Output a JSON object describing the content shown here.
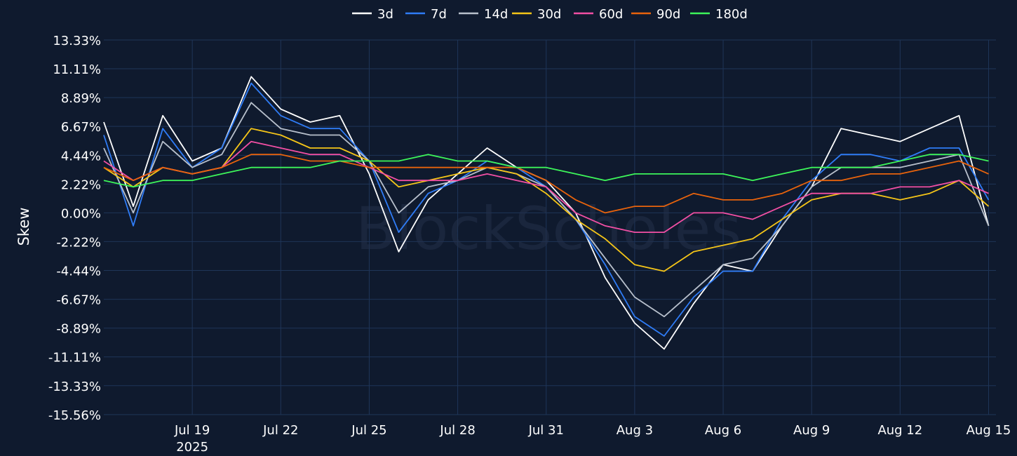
{
  "colors": {
    "background": "#0f1a2e",
    "grid": "#1f3558",
    "text": "#ffffff"
  },
  "watermark": "BlockScholes",
  "chart_data": {
    "type": "line",
    "title": "",
    "xlabel": "",
    "ylabel": "Skew",
    "x_range": [
      "2025-07-16",
      "2025-08-15T06:00"
    ],
    "ylim": [
      -15.56,
      13.33
    ],
    "y_ticks": [
      {
        "value": 13.33,
        "label": "13.33%"
      },
      {
        "value": 11.11,
        "label": "11.11%"
      },
      {
        "value": 8.89,
        "label": "8.89%"
      },
      {
        "value": 6.67,
        "label": "6.67%"
      },
      {
        "value": 4.44,
        "label": "4.44%"
      },
      {
        "value": 2.22,
        "label": "2.22%"
      },
      {
        "value": 0.0,
        "label": "0.00%"
      },
      {
        "value": -2.22,
        "label": "-2.22%"
      },
      {
        "value": -4.44,
        "label": "-4.44%"
      },
      {
        "value": -6.67,
        "label": "-6.67%"
      },
      {
        "value": -8.89,
        "label": "-8.89%"
      },
      {
        "value": -11.11,
        "label": "-11.11%"
      },
      {
        "value": -13.33,
        "label": "-13.33%"
      },
      {
        "value": -15.56,
        "label": "-15.56%"
      }
    ],
    "x_ticks": [
      {
        "date": "2025-07-19",
        "label": "Jul 19",
        "sublabel": "2025"
      },
      {
        "date": "2025-07-22",
        "label": "Jul 22"
      },
      {
        "date": "2025-07-25",
        "label": "Jul 25"
      },
      {
        "date": "2025-07-28",
        "label": "Jul 28"
      },
      {
        "date": "2025-07-31",
        "label": "Jul 31"
      },
      {
        "date": "2025-08-03",
        "label": "Aug 3"
      },
      {
        "date": "2025-08-06",
        "label": "Aug 6"
      },
      {
        "date": "2025-08-09",
        "label": "Aug 9"
      },
      {
        "date": "2025-08-12",
        "label": "Aug 12"
      },
      {
        "date": "2025-08-15",
        "label": "Aug 15"
      }
    ],
    "grid": true,
    "legend_position": "top-center",
    "x": [
      "2025-07-16",
      "2025-07-17",
      "2025-07-18",
      "2025-07-19",
      "2025-07-20",
      "2025-07-21",
      "2025-07-22",
      "2025-07-23",
      "2025-07-24",
      "2025-07-25",
      "2025-07-26",
      "2025-07-27",
      "2025-07-28",
      "2025-07-29",
      "2025-07-30",
      "2025-07-31",
      "2025-08-01",
      "2025-08-02",
      "2025-08-03",
      "2025-08-04",
      "2025-08-05",
      "2025-08-06",
      "2025-08-07",
      "2025-08-08",
      "2025-08-09",
      "2025-08-10",
      "2025-08-11",
      "2025-08-12",
      "2025-08-13",
      "2025-08-14",
      "2025-08-15"
    ],
    "series": [
      {
        "name": "3d",
        "color": "#ffffff",
        "values": [
          7.0,
          0.5,
          7.5,
          4.0,
          5.0,
          10.5,
          8.0,
          7.0,
          7.5,
          3.0,
          -3.0,
          1.0,
          3.0,
          5.0,
          3.5,
          2.5,
          0.0,
          -5.0,
          -8.5,
          -10.5,
          -7.0,
          -4.0,
          -4.5,
          -1.0,
          2.0,
          6.5,
          6.0,
          5.5,
          6.5,
          7.5,
          -1.0
        ]
      },
      {
        "name": "7d",
        "color": "#2f7cf6",
        "values": [
          6.0,
          -1.0,
          6.5,
          3.5,
          5.0,
          10.0,
          7.5,
          6.5,
          6.5,
          4.0,
          -1.5,
          1.5,
          2.5,
          4.0,
          3.5,
          2.0,
          -0.5,
          -4.0,
          -8.0,
          -9.5,
          -6.5,
          -4.5,
          -4.5,
          -0.5,
          2.5,
          4.5,
          4.5,
          4.0,
          5.0,
          5.0,
          1.0
        ]
      },
      {
        "name": "14d",
        "color": "#b8c0cc",
        "values": [
          5.0,
          0.0,
          5.5,
          3.5,
          4.5,
          8.5,
          6.5,
          6.0,
          6.0,
          4.0,
          0.0,
          2.0,
          2.5,
          3.5,
          3.0,
          2.0,
          -0.5,
          -3.5,
          -6.5,
          -8.0,
          -6.0,
          -4.0,
          -3.5,
          -1.0,
          2.0,
          3.5,
          3.5,
          3.5,
          4.0,
          4.5,
          -1.0
        ]
      },
      {
        "name": "30d",
        "color": "#f5c518",
        "values": [
          3.5,
          2.0,
          3.5,
          3.0,
          3.5,
          6.5,
          6.0,
          5.0,
          5.0,
          4.0,
          2.0,
          2.5,
          3.0,
          3.5,
          3.0,
          1.5,
          -0.5,
          -2.0,
          -4.0,
          -4.5,
          -3.0,
          -2.5,
          -2.0,
          -0.5,
          1.0,
          1.5,
          1.5,
          1.0,
          1.5,
          2.5,
          0.5
        ]
      },
      {
        "name": "60d",
        "color": "#f24fa4",
        "values": [
          4.0,
          2.5,
          3.5,
          3.0,
          3.5,
          5.5,
          5.0,
          4.5,
          4.5,
          3.5,
          2.5,
          2.5,
          2.5,
          3.0,
          2.5,
          2.0,
          0.0,
          -1.0,
          -1.5,
          -1.5,
          0.0,
          0.0,
          -0.5,
          0.5,
          1.5,
          1.5,
          1.5,
          2.0,
          2.0,
          2.5,
          1.5
        ]
      },
      {
        "name": "90d",
        "color": "#e8630c",
        "values": [
          3.5,
          2.5,
          3.5,
          3.0,
          3.5,
          4.5,
          4.5,
          4.0,
          4.0,
          3.5,
          3.5,
          3.5,
          3.5,
          3.5,
          3.5,
          2.5,
          1.0,
          0.0,
          0.5,
          0.5,
          1.5,
          1.0,
          1.0,
          1.5,
          2.5,
          2.5,
          3.0,
          3.0,
          3.5,
          4.0,
          3.0
        ]
      },
      {
        "name": "180d",
        "color": "#3df55a",
        "values": [
          2.5,
          2.0,
          2.5,
          2.5,
          3.0,
          3.5,
          3.5,
          3.5,
          4.0,
          4.0,
          4.0,
          4.5,
          4.0,
          4.0,
          3.5,
          3.5,
          3.0,
          2.5,
          3.0,
          3.0,
          3.0,
          3.0,
          2.5,
          3.0,
          3.5,
          3.5,
          3.5,
          4.0,
          4.5,
          4.5,
          4.0
        ]
      }
    ]
  }
}
